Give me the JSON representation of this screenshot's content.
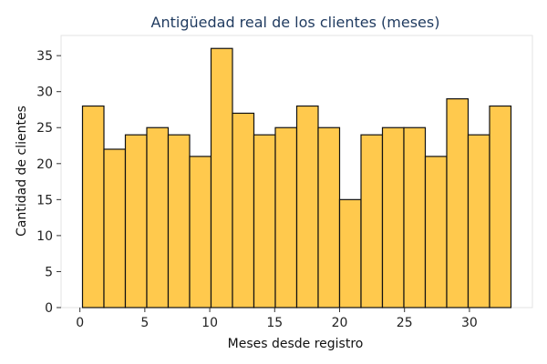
{
  "chart_data": {
    "type": "bar",
    "title": "Antigüedad real de los clientes (meses)",
    "xlabel": "Meses desde registro",
    "ylabel": "Cantidad de clientes",
    "bin_edges": [
      0.2,
      1.85,
      3.5,
      5.15,
      6.8,
      8.45,
      10.1,
      11.75,
      13.4,
      15.05,
      16.7,
      18.35,
      20.0,
      21.65,
      23.3,
      24.95,
      26.6,
      28.25,
      29.9,
      31.55,
      33.2
    ],
    "values": [
      28,
      22,
      24,
      25,
      24,
      21,
      36,
      27,
      24,
      25,
      28,
      25,
      15,
      24,
      25,
      25,
      21,
      29,
      24,
      28
    ],
    "xlim": [
      -1.45,
      34.85
    ],
    "ylim": [
      0,
      37.8
    ],
    "xticks": [
      "0",
      "5",
      "10",
      "15",
      "20",
      "25",
      "30"
    ],
    "yticks": [
      "0",
      "5",
      "10",
      "15",
      "20",
      "25",
      "30",
      "35"
    ],
    "grid": false,
    "colors": {
      "bar_fill": "#FFC94D",
      "bar_edge": "#111111",
      "title": "#1F3A5F",
      "spine": "#E3E3E3"
    }
  }
}
